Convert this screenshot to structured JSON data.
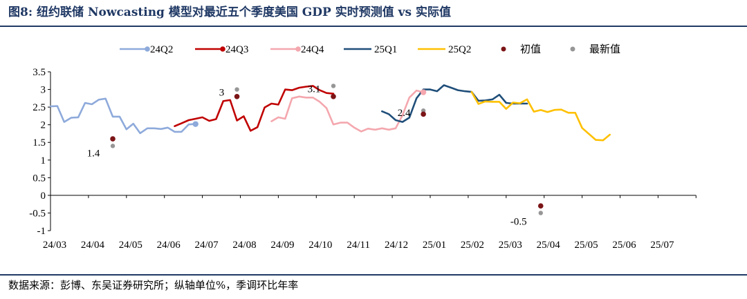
{
  "header": {
    "title": "图8:  纽约联储 Nowcasting 模型对最近五个季度美国 GDP 实时预测值 vs 实际值"
  },
  "footer": {
    "source": "数据来源：彭博、东吴证券研究所；纵轴单位%，季调环比年率"
  },
  "chart_data": {
    "type": "line",
    "title": "",
    "xlabel": "",
    "ylabel": "",
    "ylim": [
      -1,
      3.5
    ],
    "yticks": [
      "3.5",
      "3",
      "2.5",
      "2",
      "1.5",
      "1",
      "0.5",
      "0",
      "-0.5",
      "-1"
    ],
    "xticks": [
      "24/03",
      "24/04",
      "24/05",
      "24/06",
      "24/07",
      "24/08",
      "24/09",
      "24/10",
      "24/11",
      "24/12",
      "25/01",
      "25/02",
      "25/03",
      "25/04",
      "25/05",
      "25/06",
      "25/07"
    ],
    "legend_position": "top",
    "series": [
      {
        "name": "24Q2",
        "color": "#8eaadb",
        "points": [
          [
            0,
            2.52
          ],
          [
            0.18,
            2.53
          ],
          [
            0.36,
            2.08
          ],
          [
            0.55,
            2.2
          ],
          [
            0.73,
            2.21
          ],
          [
            0.91,
            2.62
          ],
          [
            1.09,
            2.58
          ],
          [
            1.27,
            2.71
          ],
          [
            1.45,
            2.74
          ],
          [
            1.64,
            2.23
          ],
          [
            1.82,
            2.23
          ],
          [
            2.0,
            1.87
          ],
          [
            2.18,
            2.03
          ],
          [
            2.36,
            1.76
          ],
          [
            2.55,
            1.9
          ],
          [
            2.73,
            1.9
          ],
          [
            2.91,
            1.88
          ],
          [
            3.09,
            1.92
          ],
          [
            3.27,
            1.8
          ],
          [
            3.45,
            1.8
          ],
          [
            3.64,
            2.01
          ],
          [
            3.82,
            2.02
          ]
        ]
      },
      {
        "name": "24Q3",
        "color": "#c00000",
        "points": [
          [
            3.27,
            1.96
          ],
          [
            3.45,
            2.04
          ],
          [
            3.64,
            2.13
          ],
          [
            3.82,
            2.17
          ],
          [
            4.0,
            2.21
          ],
          [
            4.18,
            2.11
          ],
          [
            4.36,
            2.16
          ],
          [
            4.55,
            2.67
          ],
          [
            4.73,
            2.7
          ],
          [
            4.91,
            2.12
          ],
          [
            5.09,
            2.24
          ],
          [
            5.27,
            1.83
          ],
          [
            5.45,
            1.93
          ],
          [
            5.64,
            2.49
          ],
          [
            5.82,
            2.6
          ],
          [
            6.0,
            2.57
          ],
          [
            6.18,
            3.0
          ],
          [
            6.36,
            2.98
          ],
          [
            6.55,
            3.05
          ],
          [
            6.73,
            3.08
          ],
          [
            6.91,
            3.1
          ],
          [
            7.09,
            2.98
          ],
          [
            7.27,
            2.9
          ],
          [
            7.45,
            2.88
          ]
        ]
      },
      {
        "name": "24Q4",
        "color": "#f4a7ae",
        "points": [
          [
            5.82,
            2.1
          ],
          [
            6.0,
            2.21
          ],
          [
            6.18,
            2.17
          ],
          [
            6.36,
            2.75
          ],
          [
            6.55,
            2.8
          ],
          [
            6.73,
            2.77
          ],
          [
            6.91,
            2.77
          ],
          [
            7.09,
            2.65
          ],
          [
            7.27,
            2.47
          ],
          [
            7.45,
            2.01
          ],
          [
            7.64,
            2.06
          ],
          [
            7.82,
            2.06
          ],
          [
            8.0,
            1.92
          ],
          [
            8.18,
            1.81
          ],
          [
            8.36,
            1.89
          ],
          [
            8.55,
            1.86
          ],
          [
            8.73,
            1.9
          ],
          [
            8.91,
            1.86
          ],
          [
            9.09,
            1.9
          ],
          [
            9.27,
            2.27
          ],
          [
            9.45,
            2.77
          ],
          [
            9.64,
            2.97
          ],
          [
            9.82,
            2.92
          ]
        ]
      },
      {
        "name": "25Q1",
        "color": "#1f4e79",
        "points": [
          [
            8.73,
            2.38
          ],
          [
            8.91,
            2.3
          ],
          [
            9.09,
            2.13
          ],
          [
            9.27,
            2.08
          ],
          [
            9.45,
            2.2
          ],
          [
            9.64,
            2.75
          ],
          [
            9.82,
            3.0
          ],
          [
            10.0,
            3.0
          ],
          [
            10.18,
            2.95
          ],
          [
            10.36,
            3.12
          ],
          [
            10.55,
            3.05
          ],
          [
            10.73,
            2.98
          ],
          [
            10.91,
            2.95
          ],
          [
            11.09,
            2.93
          ],
          [
            11.27,
            2.68
          ],
          [
            11.45,
            2.69
          ],
          [
            11.64,
            2.72
          ],
          [
            11.82,
            2.85
          ],
          [
            12.0,
            2.62
          ],
          [
            12.18,
            2.6
          ],
          [
            12.36,
            2.6
          ],
          [
            12.55,
            2.6
          ]
        ]
      },
      {
        "name": "25Q2",
        "color": "#ffc000",
        "points": [
          [
            11.09,
            2.93
          ],
          [
            11.27,
            2.59
          ],
          [
            11.45,
            2.66
          ],
          [
            11.64,
            2.65
          ],
          [
            11.82,
            2.65
          ],
          [
            12.0,
            2.45
          ],
          [
            12.18,
            2.63
          ],
          [
            12.36,
            2.61
          ],
          [
            12.55,
            2.72
          ],
          [
            12.73,
            2.37
          ],
          [
            12.91,
            2.42
          ],
          [
            13.09,
            2.36
          ],
          [
            13.27,
            2.42
          ],
          [
            13.45,
            2.43
          ],
          [
            13.64,
            2.34
          ],
          [
            13.82,
            2.34
          ],
          [
            14.0,
            1.91
          ],
          [
            14.18,
            1.74
          ],
          [
            14.36,
            1.57
          ],
          [
            14.55,
            1.56
          ],
          [
            14.73,
            1.72
          ]
        ]
      }
    ],
    "initial_values": {
      "name": "初值",
      "color": "#7b1416",
      "points": [
        [
          1.64,
          1.6
        ],
        [
          4.91,
          2.8
        ],
        [
          7.45,
          2.8
        ],
        [
          9.82,
          2.3
        ],
        [
          12.91,
          -0.3
        ]
      ]
    },
    "latest_values": {
      "name": "最新值",
      "color": "#969696",
      "points": [
        [
          1.64,
          1.4
        ],
        [
          4.91,
          3.0
        ],
        [
          7.45,
          3.1
        ],
        [
          9.82,
          2.4
        ],
        [
          12.91,
          -0.5
        ]
      ]
    },
    "annotations": [
      "1.4",
      "3",
      "3.1",
      "2.4",
      "-0.5"
    ]
  }
}
